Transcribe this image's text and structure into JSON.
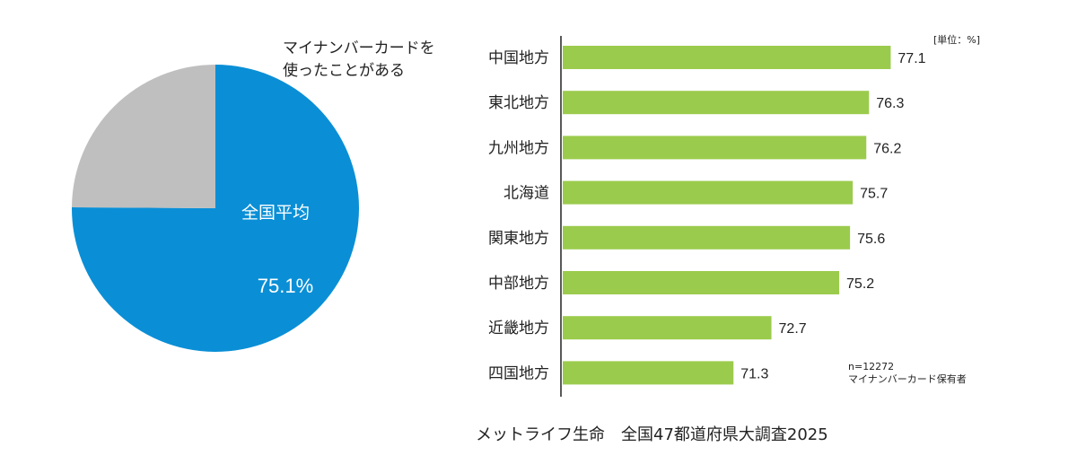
{
  "chart_data": [
    {
      "type": "pie",
      "legend_label": [
        "マイナンバーカードを",
        "使ったことがある"
      ],
      "center_label": "全国平均",
      "value_label": "75.1%",
      "slices": [
        {
          "label": "マイナンバーカードを使ったことがある",
          "value": 75.1,
          "color": "#0A8FD6"
        },
        {
          "label": "",
          "value": 24.9,
          "color": "#BFBFBF"
        }
      ]
    },
    {
      "type": "bar",
      "orientation": "horizontal",
      "unit_label": "[単位：%]",
      "categories": [
        "中国地方",
        "東北地方",
        "九州地方",
        "北海道",
        "関東地方",
        "中部地方",
        "近畿地方",
        "四国地方"
      ],
      "values": [
        77.1,
        76.3,
        76.2,
        75.7,
        75.6,
        75.2,
        72.7,
        71.3
      ],
      "value_labels": [
        "77.1",
        "76.3",
        "76.2",
        "75.7",
        "75.6",
        "75.2",
        "72.7",
        "71.3"
      ],
      "xlim": [
        65,
        80
      ],
      "bar_color": "#9BCB4C",
      "grid": false,
      "note": [
        "n=12272",
        "マイナンバーカード保有者"
      ]
    }
  ],
  "footer": "メットライフ生命　全国47都道府県大調査2025"
}
